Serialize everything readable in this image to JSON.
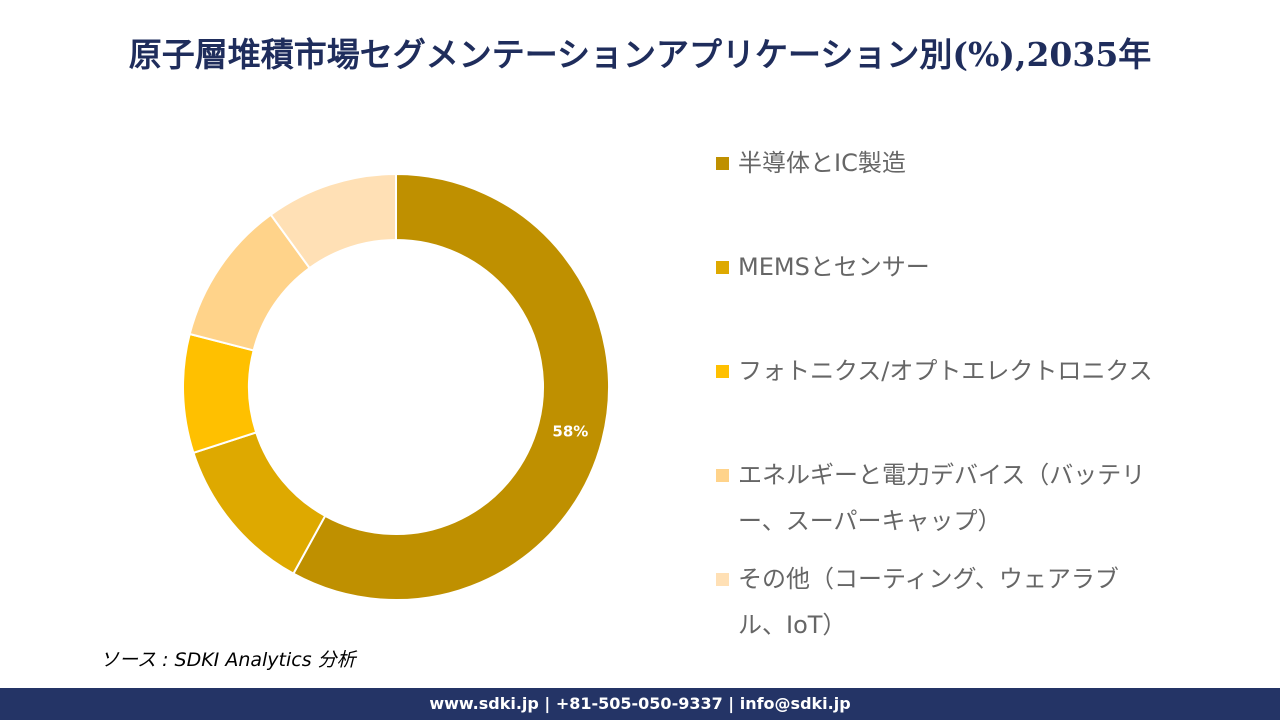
{
  "chart_data": {
    "type": "donut",
    "title": "原子層堆積市場セグメンテーションアプリケーション別(%),2035年",
    "categories": [
      "半導体とIC製造",
      "MEMSとセンサー",
      "フォトニクス/オプトエレクトロニクス",
      "エネルギーと電力デバイス（バッテリー、スーパーキャップ）",
      "その他（コーティング、ウェアラブル、IoT）"
    ],
    "values": [
      58,
      12,
      9,
      11,
      10
    ],
    "value_labels": [
      "58%",
      null,
      null,
      null,
      null
    ],
    "colors": [
      "#bf9000",
      "#dea900",
      "#ffc000",
      "#ffd38a",
      "#ffe0b5"
    ],
    "legend": "right"
  },
  "source": "ソース : SDKI Analytics 分析",
  "footer": "www.sdki.jp | +81-505-050-9337 | info@sdki.jp"
}
